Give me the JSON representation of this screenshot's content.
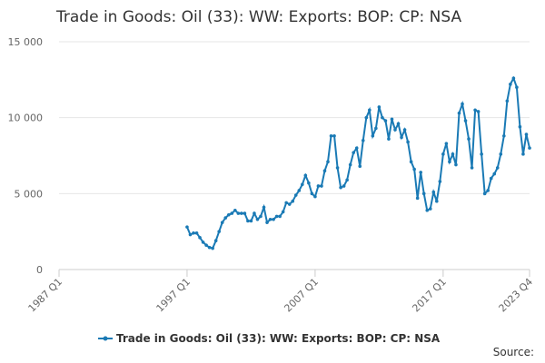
{
  "chart_data": {
    "type": "line",
    "title": "Trade in Goods: Oil (33): WW: Exports: BOP: CP: NSA",
    "source": "Source:",
    "categories": [
      "1987 Q1",
      null,
      null,
      null,
      null,
      null,
      null,
      null,
      null,
      null,
      null,
      null,
      null,
      null,
      null,
      null,
      null,
      null,
      null,
      null,
      null,
      null,
      null,
      null,
      null,
      null,
      null,
      null,
      null,
      null,
      null,
      null,
      null,
      null,
      null,
      null,
      null,
      null,
      null,
      null,
      "1997 Q1",
      null,
      null,
      null,
      null,
      null,
      null,
      null,
      null,
      null,
      null,
      null,
      null,
      null,
      null,
      null,
      null,
      null,
      null,
      null,
      null,
      null,
      null,
      null,
      null,
      null,
      null,
      null,
      null,
      null,
      null,
      null,
      null,
      null,
      null,
      null,
      null,
      null,
      null,
      null,
      "2007 Q1",
      null,
      null,
      null,
      null,
      null,
      null,
      null,
      null,
      null,
      null,
      null,
      null,
      null,
      null,
      null,
      null,
      null,
      null,
      null,
      null,
      null,
      null,
      null,
      null,
      null,
      null,
      null,
      null,
      null,
      null,
      null,
      null,
      null,
      null,
      null,
      null,
      null,
      null,
      null,
      "2017 Q1",
      null,
      null,
      null,
      null,
      null,
      null,
      null,
      null,
      null,
      null,
      null,
      null,
      null,
      null,
      null,
      null,
      null,
      null,
      null,
      null,
      null,
      null,
      null,
      null,
      null,
      null,
      "2023 Q4"
    ],
    "series": [
      {
        "name": "Trade in Goods: Oil (33): WW: Exports: BOP: CP: NSA",
        "color": "#1a7ab5",
        "values": [
          null,
          null,
          null,
          null,
          null,
          null,
          null,
          null,
          null,
          null,
          null,
          null,
          null,
          null,
          null,
          null,
          null,
          null,
          null,
          null,
          null,
          null,
          null,
          null,
          null,
          null,
          null,
          null,
          null,
          null,
          null,
          null,
          null,
          null,
          null,
          null,
          null,
          null,
          null,
          null,
          2800,
          2300,
          2400,
          2400,
          2100,
          1800,
          1600,
          1450,
          1400,
          1900,
          2500,
          3100,
          3400,
          3600,
          3700,
          3900,
          3700,
          3700,
          3700,
          3200,
          3200,
          3700,
          3300,
          3500,
          4100,
          3100,
          3300,
          3300,
          3500,
          3500,
          3800,
          4400,
          4300,
          4500,
          4900,
          5200,
          5600,
          6200,
          5700,
          5000,
          4800,
          5500,
          5500,
          6500,
          7100,
          8800,
          8800,
          6700,
          5400,
          5500,
          5900,
          6900,
          7700,
          8000,
          6800,
          8500,
          10000,
          10500,
          8800,
          9300,
          10700,
          10000,
          9800,
          8600,
          9900,
          9200,
          9600,
          8700,
          9200,
          8400,
          7100,
          6600,
          4700,
          6400,
          5000,
          3900,
          4000,
          5100,
          4500,
          5800,
          7600,
          8300,
          7100,
          7600,
          6900,
          10300,
          10900,
          9800,
          8600,
          6700,
          10500,
          10400,
          7600,
          5000,
          5200,
          6000,
          6300,
          6700,
          7600,
          8800,
          11100,
          12200,
          12600,
          12000,
          9400,
          7600,
          8900,
          8000
        ]
      }
    ],
    "ylim": [
      0,
      15000
    ],
    "yticks": [
      0,
      {
        "value": 5000,
        "label": "5 000"
      },
      {
        "value": 10000,
        "label": "10 000"
      },
      {
        "value": 15000,
        "label": "15 000"
      }
    ],
    "grid": true
  }
}
